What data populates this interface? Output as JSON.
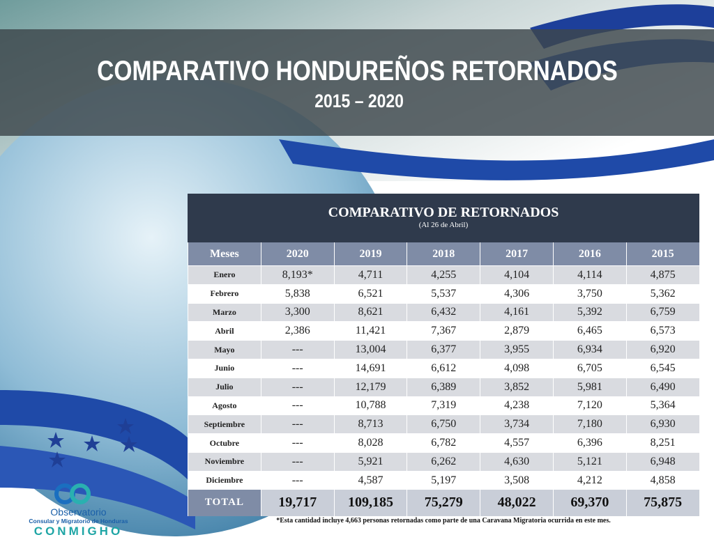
{
  "header": {
    "title": "COMPARATIVO HONDUREÑOS RETORNADOS",
    "subtitle": "2015 – 2020"
  },
  "table": {
    "title": "COMPARATIVO DE RETORNADOS",
    "subtitle": "(Al 26 de Abril)",
    "columns": [
      "Meses",
      "2020",
      "2019",
      "2018",
      "2017",
      "2016",
      "2015"
    ],
    "rows": [
      [
        "Enero",
        "8,193*",
        "4,711",
        "4,255",
        "4,104",
        "4,114",
        "4,875"
      ],
      [
        "Febrero",
        "5,838",
        "6,521",
        "5,537",
        "4,306",
        "3,750",
        "5,362"
      ],
      [
        "Marzo",
        "3,300",
        "8,621",
        "6,432",
        "4,161",
        "5,392",
        "6,759"
      ],
      [
        "Abril",
        "2,386",
        "11,421",
        "7,367",
        "2,879",
        "6,465",
        "6,573"
      ],
      [
        "Mayo",
        "---",
        "13,004",
        "6,377",
        "3,955",
        "6,934",
        "6,920"
      ],
      [
        "Junio",
        "---",
        "14,691",
        "6,612",
        "4,098",
        "6,705",
        "6,545"
      ],
      [
        "Julio",
        "---",
        "12,179",
        "6,389",
        "3,852",
        "5,981",
        "6,490"
      ],
      [
        "Agosto",
        "---",
        "10,788",
        "7,319",
        "4,238",
        "7,120",
        "5,364"
      ],
      [
        "Septiembre",
        "---",
        "8,713",
        "6,750",
        "3,734",
        "7,180",
        "6,930"
      ],
      [
        "Octubre",
        "---",
        "8,028",
        "6,782",
        "4,557",
        "6,396",
        "8,251"
      ],
      [
        "Noviembre",
        "---",
        "5,921",
        "6,262",
        "4,630",
        "5,121",
        "6,948"
      ],
      [
        "Diciembre",
        "---",
        "4,587",
        "5,197",
        "3,508",
        "4,212",
        "4,858"
      ]
    ],
    "total": [
      "TOTAL",
      "19,717",
      "109,185",
      "75,279",
      "48,022",
      "69,370",
      "75,875"
    ]
  },
  "footnote": "*Esta cantidad incluye 4,663 personas retornadas como parte de una Caravana Migratoria ocurrida en este mes.",
  "logo": {
    "line1": "Observatorio",
    "line2": "Consular y Migratorio de Honduras",
    "name": "CONMIGHO"
  }
}
